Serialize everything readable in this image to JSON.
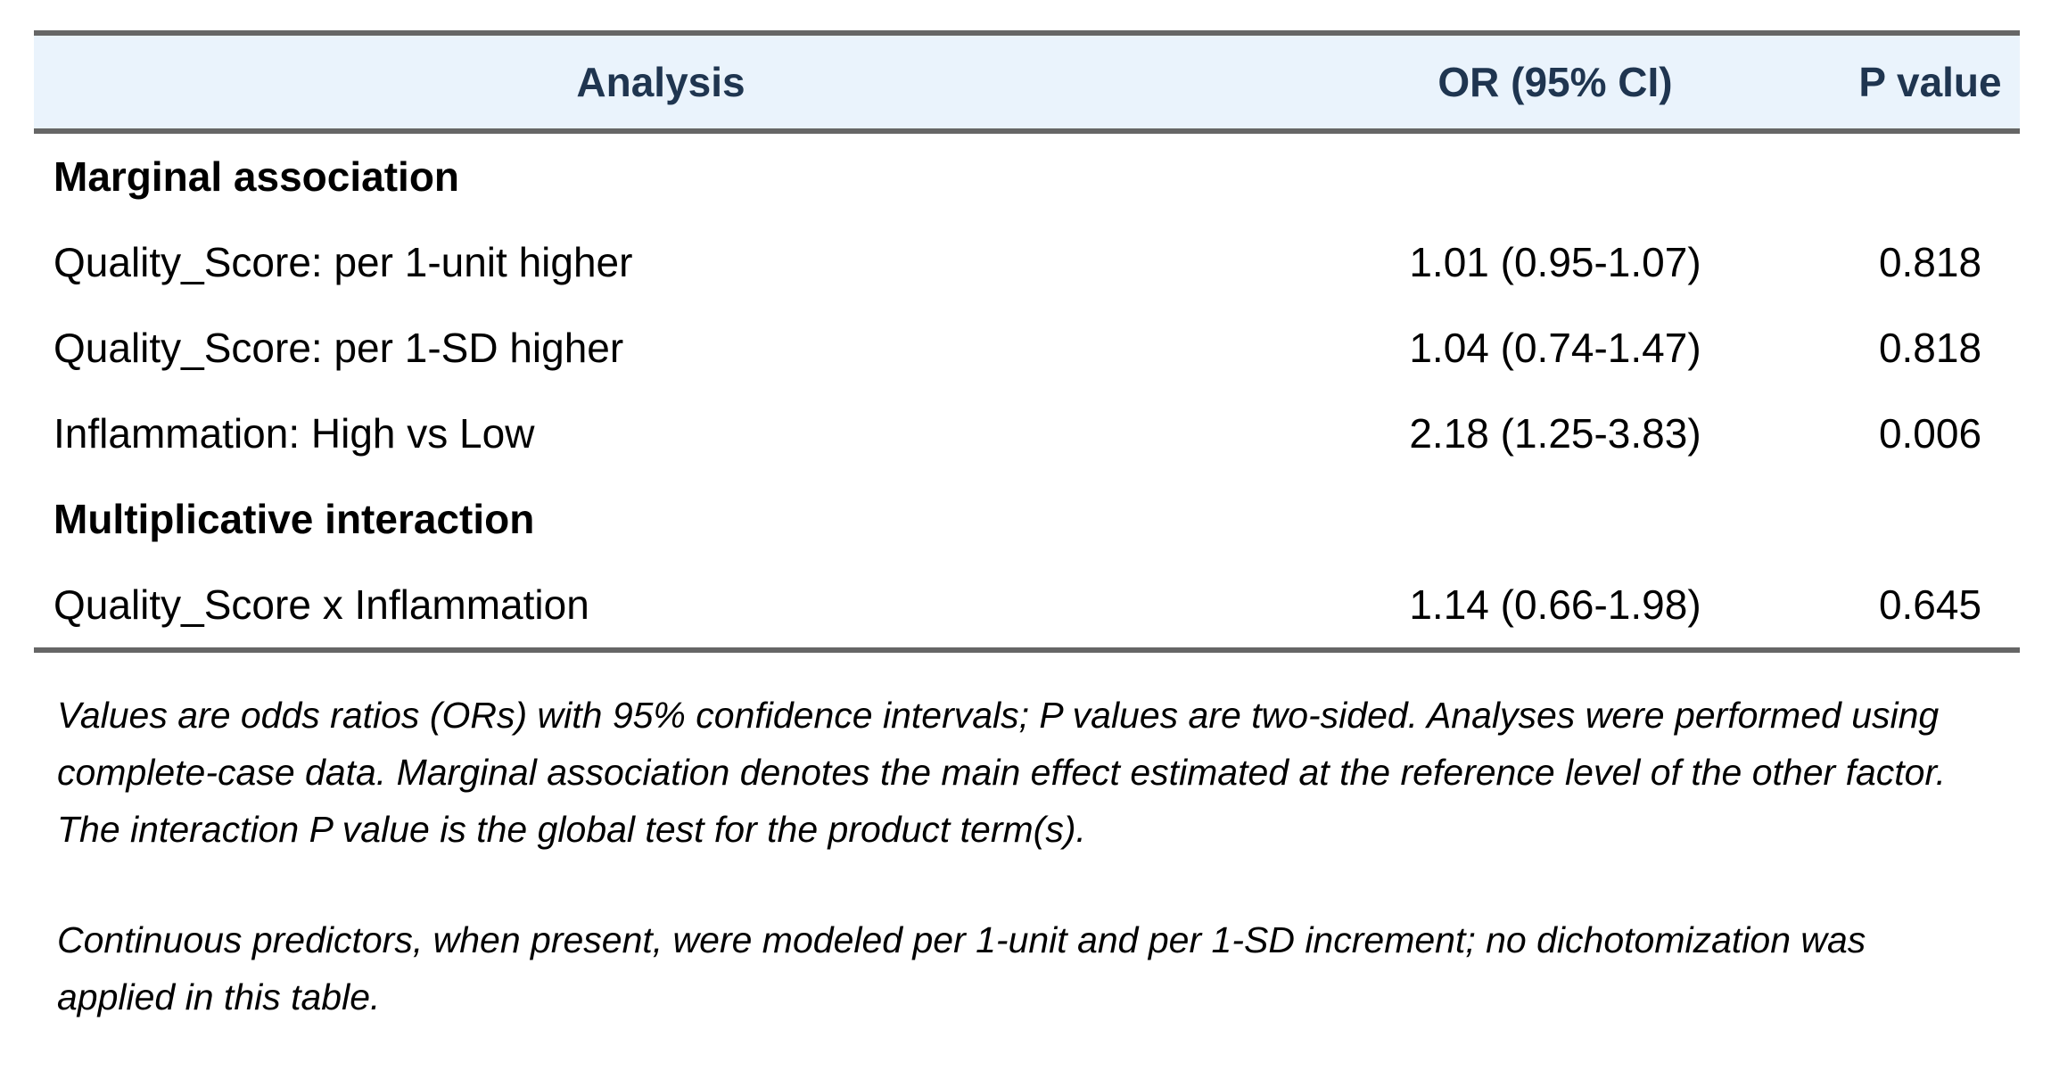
{
  "table": {
    "headers": {
      "analysis": "Analysis",
      "or": "OR (95% CI)",
      "p": "P value"
    },
    "rows": [
      {
        "label": "Marginal association",
        "or": "",
        "p": ""
      },
      {
        "label": "Quality_Score: per 1-unit higher",
        "or": "1.01 (0.95-1.07)",
        "p": "0.818"
      },
      {
        "label": "Quality_Score: per 1-SD higher",
        "or": "1.04 (0.74-1.47)",
        "p": "0.818"
      },
      {
        "label": "Inflammation: High vs Low",
        "or": "2.18 (1.25-3.83)",
        "p": "0.006"
      },
      {
        "label": "Multiplicative interaction",
        "or": "",
        "p": ""
      },
      {
        "label": "Quality_Score x Inflammation",
        "or": "1.14 (0.66-1.98)",
        "p": "0.645"
      }
    ]
  },
  "notes": [
    "Values are odds ratios (ORs) with 95% confidence intervals; P values are two-sided. Analyses were performed using complete-case data. Marginal association denotes the main effect estimated at the reference level of the other factor. The interaction P value is the global test for the product term(s).",
    "Continuous predictors, when present, were modeled per 1-unit and per 1-SD increment; no dichotomization was applied in this table."
  ]
}
